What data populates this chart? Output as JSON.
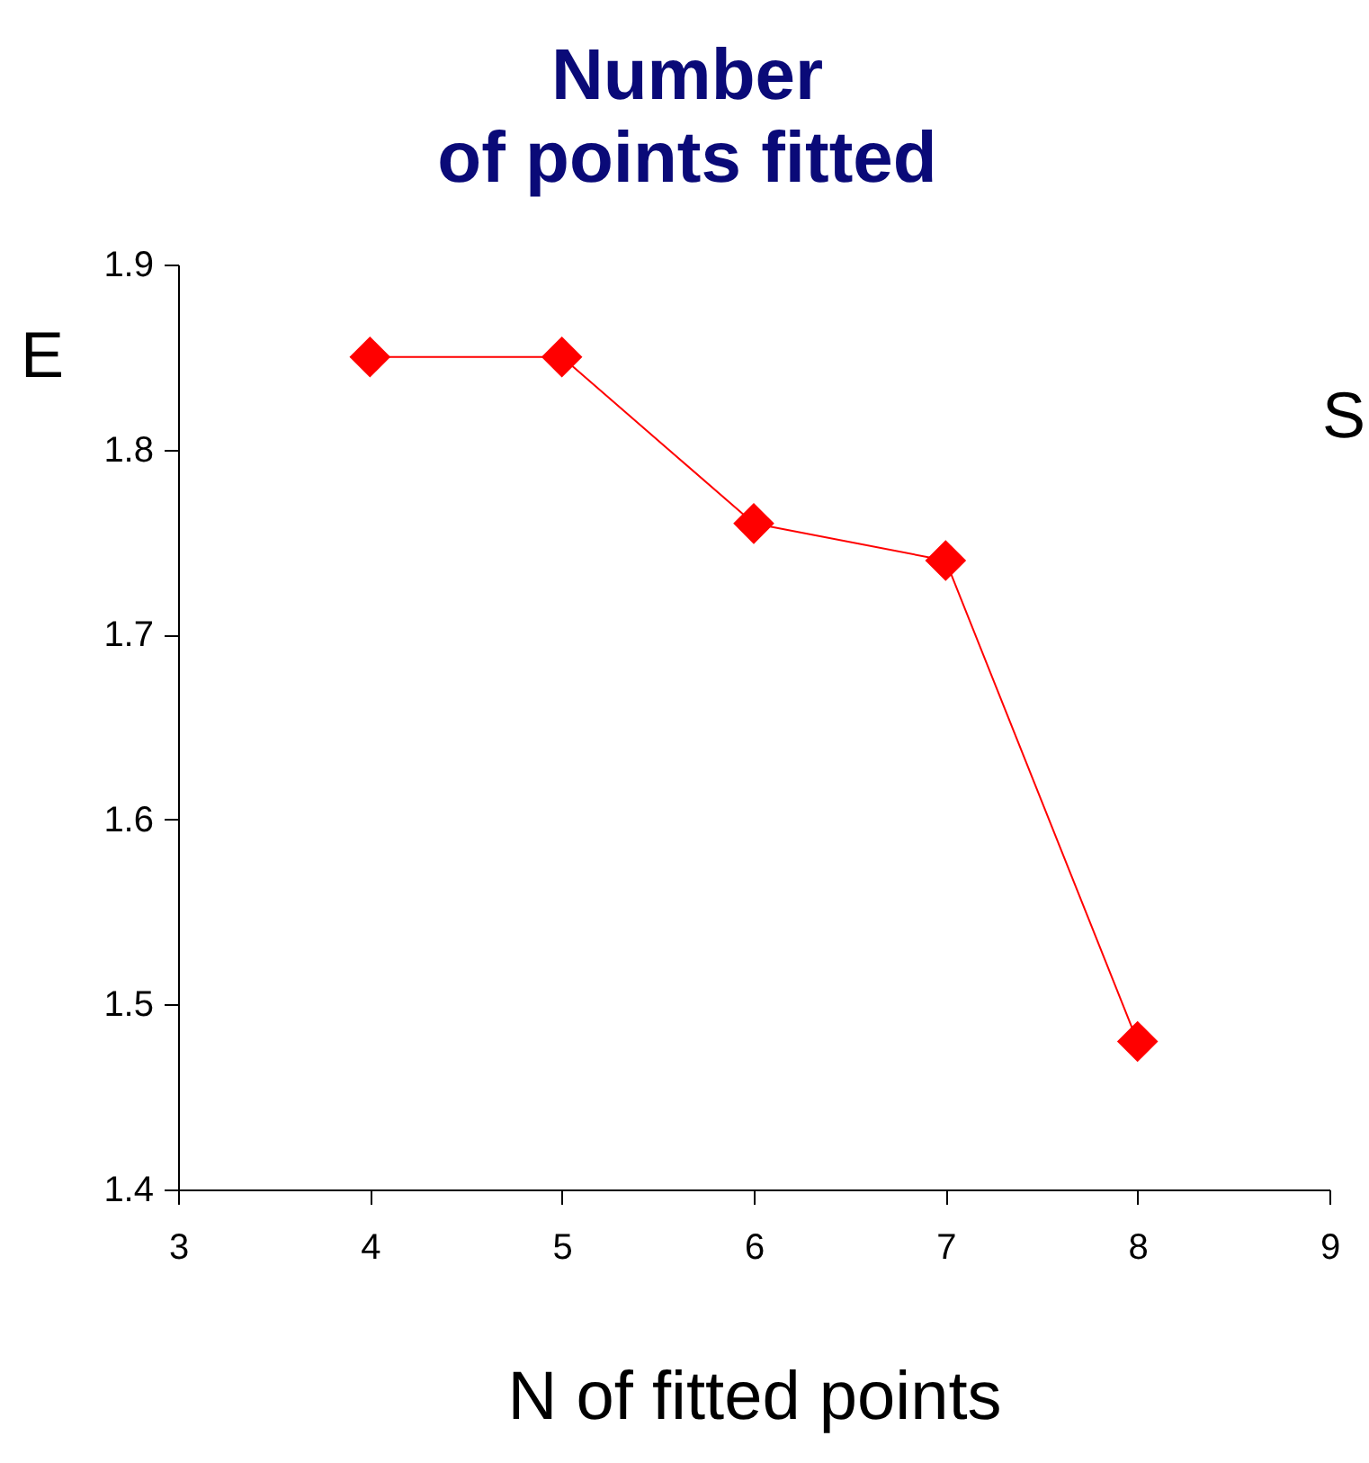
{
  "chart_data": {
    "type": "line",
    "title": "Number of points fitted",
    "xlabel": "N of fitted points",
    "ylabel": "E",
    "annotations": [
      "S"
    ],
    "x": [
      4,
      5,
      6,
      7,
      8
    ],
    "series": [
      {
        "color": "#ff0000",
        "values": [
          1.85,
          1.85,
          1.76,
          1.74,
          1.48
        ]
      }
    ],
    "xlim": [
      3,
      9
    ],
    "xticks": [
      3,
      4,
      5,
      6,
      7,
      8,
      9
    ],
    "ylim": [
      1.4,
      1.9
    ],
    "yticks": [
      {
        "value": 1.4,
        "label": "1.4"
      },
      {
        "value": 1.5,
        "label": "1.5"
      },
      {
        "value": 1.6,
        "label": "1.6"
      },
      {
        "value": 1.7,
        "label": "1.7"
      },
      {
        "value": 1.8,
        "label": "1.8"
      },
      {
        "value": 1.9,
        "label": "1.9"
      }
    ],
    "marker": "diamond",
    "line_style": "solid"
  }
}
